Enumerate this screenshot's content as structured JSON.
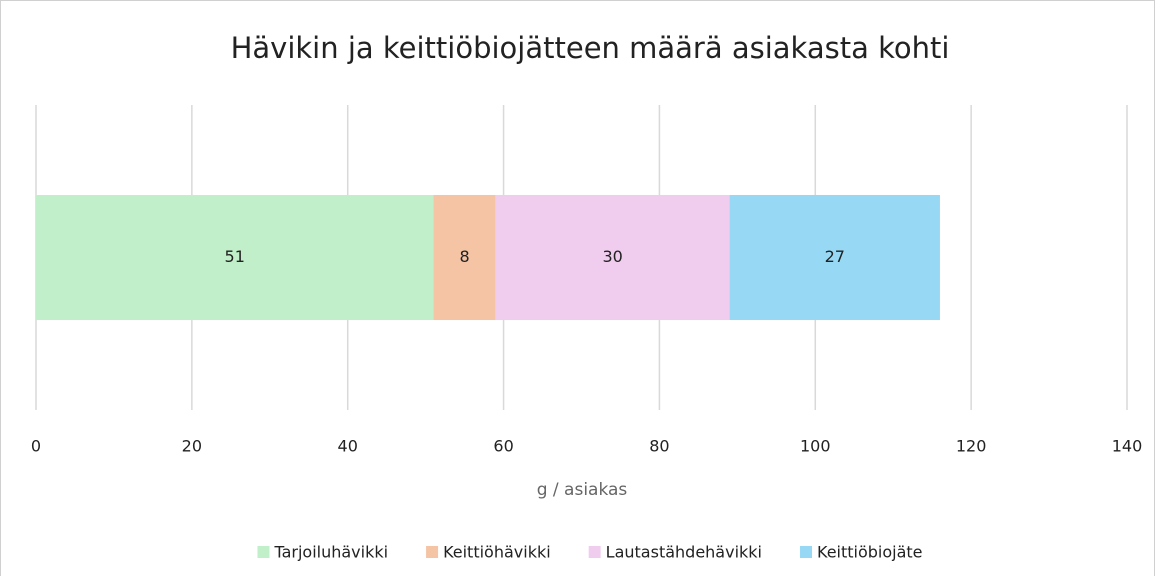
{
  "chart_data": {
    "type": "stacked-bar-horizontal",
    "title": "Hävikin ja keittiöbiojätteen määrä asiakasta kohti",
    "x_label": "g / asiakas",
    "categories": [
      null
    ],
    "series": [
      {
        "name": "Tarjoiluhävikki",
        "color": "#c1efc9",
        "values": [
          51
        ]
      },
      {
        "name": "Keittiöhävikki",
        "color": "#f4c4a4",
        "values": [
          8
        ]
      },
      {
        "name": "Lautastähdehävikki",
        "color": "#f0cdef",
        "values": [
          30
        ]
      },
      {
        "name": "Keittiöbiojäte",
        "color": "#97d9f5",
        "values": [
          27
        ]
      }
    ],
    "xlim": [
      0,
      140
    ],
    "xticks": [
      0,
      20,
      40,
      60,
      80,
      100,
      120,
      140
    ],
    "grid": true,
    "legend": "bottom"
  }
}
